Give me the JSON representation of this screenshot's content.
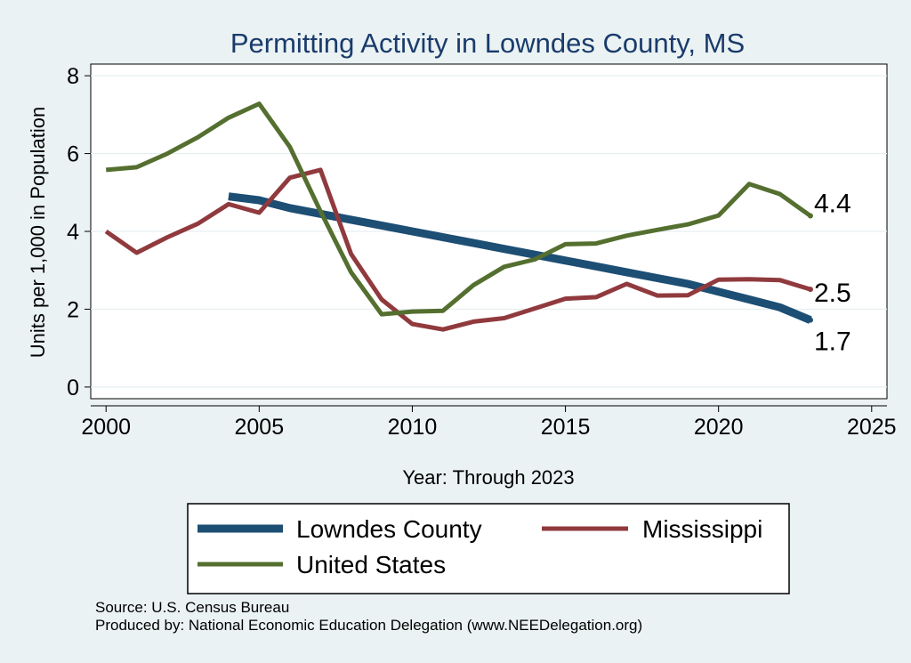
{
  "chart_data": {
    "type": "line",
    "title": "Permitting Activity in Lowndes County, MS",
    "xlabel": "Year: Through 2023",
    "ylabel": "Units per 1,000 in Population",
    "xlim": [
      1999.5,
      2025.5
    ],
    "ylim": [
      -0.3,
      8.3
    ],
    "x_ticks": [
      2000,
      2005,
      2010,
      2015,
      2020,
      2025
    ],
    "x_tick_labels": [
      "2000",
      "2005",
      "2010",
      "2015",
      "2020",
      "2025"
    ],
    "y_ticks": [
      0,
      2,
      4,
      6,
      8
    ],
    "y_tick_labels": [
      "0",
      "2",
      "4",
      "6",
      "8"
    ],
    "grid": true,
    "legend_position": "bottom",
    "series": [
      {
        "name": "Lowndes County",
        "color": "#1d4e74",
        "x": [
          2004,
          2005,
          2006,
          2007,
          2008,
          2009,
          2010,
          2011,
          2012,
          2013,
          2014,
          2015,
          2016,
          2017,
          2018,
          2019,
          2020,
          2021,
          2022,
          2023
        ],
        "values": [
          4.9,
          4.8,
          4.6,
          4.45,
          4.3,
          4.15,
          4.0,
          3.85,
          3.7,
          3.55,
          3.4,
          3.25,
          3.1,
          2.95,
          2.8,
          2.65,
          2.45,
          2.25,
          2.05,
          1.72
        ],
        "end_label": "1.7"
      },
      {
        "name": "Mississippi",
        "color": "#903a3e",
        "x": [
          2000,
          2001,
          2002,
          2003,
          2004,
          2005,
          2006,
          2007,
          2008,
          2009,
          2010,
          2011,
          2012,
          2013,
          2014,
          2015,
          2016,
          2017,
          2018,
          2019,
          2020,
          2021,
          2022,
          2023
        ],
        "values": [
          4.0,
          3.45,
          3.85,
          4.2,
          4.7,
          4.48,
          5.38,
          5.58,
          3.42,
          2.25,
          1.62,
          1.48,
          1.68,
          1.77,
          2.02,
          2.27,
          2.31,
          2.65,
          2.35,
          2.36,
          2.76,
          2.77,
          2.75,
          2.51
        ],
        "end_label": "2.5"
      },
      {
        "name": "United States",
        "color": "#546f2f",
        "x": [
          2000,
          2001,
          2002,
          2003,
          2004,
          2005,
          2006,
          2007,
          2008,
          2009,
          2010,
          2011,
          2012,
          2013,
          2014,
          2015,
          2016,
          2017,
          2018,
          2019,
          2020,
          2021,
          2022,
          2023
        ],
        "values": [
          5.58,
          5.65,
          6.0,
          6.42,
          6.92,
          7.28,
          6.17,
          4.52,
          2.95,
          1.87,
          1.94,
          1.96,
          2.62,
          3.09,
          3.28,
          3.67,
          3.69,
          3.89,
          4.04,
          4.18,
          4.41,
          5.22,
          4.96,
          4.4
        ],
        "end_label": "4.4"
      }
    ],
    "legend": {
      "entries": [
        "Lowndes County",
        "Mississippi",
        "United States"
      ]
    },
    "notes": [
      "Source: U.S. Census Bureau",
      "Produced by: National Economic Education Delegation (www.NEEDelegation.org)"
    ]
  }
}
